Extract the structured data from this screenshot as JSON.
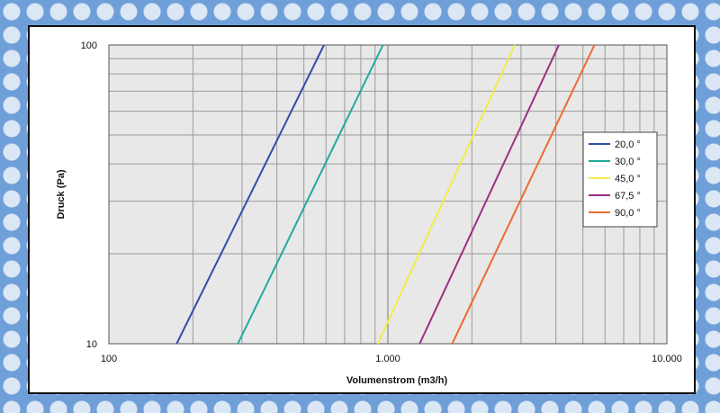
{
  "chart_data": {
    "type": "line",
    "xlabel": "Volumenstrom (m3/h)",
    "ylabel": "Druck (Pa)",
    "x_scale": "log",
    "y_scale": "log",
    "xlim": [
      100,
      10000
    ],
    "ylim": [
      10,
      100
    ],
    "x_tick_labels": [
      "100",
      "1.000",
      "10.000"
    ],
    "y_tick_labels": [
      "10",
      "100"
    ],
    "grid": true,
    "legend_position": "right",
    "series": [
      {
        "name": "20,0 °",
        "color": "#2f4fa8",
        "points": [
          [
            175,
            10
          ],
          [
            590,
            100
          ]
        ]
      },
      {
        "name": "30,0 °",
        "color": "#22a8a0",
        "points": [
          [
            290,
            10
          ],
          [
            960,
            100
          ]
        ]
      },
      {
        "name": "45,0 °",
        "color": "#f2ec4a",
        "points": [
          [
            920,
            10
          ],
          [
            2850,
            100
          ]
        ]
      },
      {
        "name": "67,5 °",
        "color": "#9a2f86",
        "points": [
          [
            1300,
            10
          ],
          [
            4100,
            100
          ]
        ]
      },
      {
        "name": "90,0 °",
        "color": "#ee6a32",
        "points": [
          [
            1700,
            10
          ],
          [
            5500,
            100
          ]
        ]
      }
    ]
  }
}
